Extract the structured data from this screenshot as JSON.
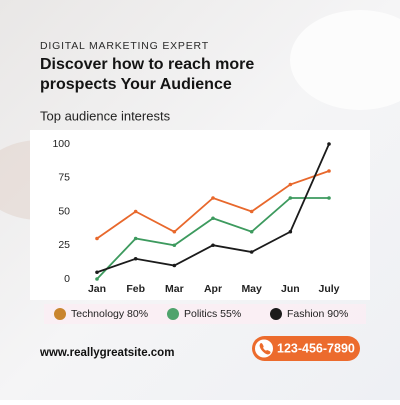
{
  "header": {
    "kicker": "DIGITAL MARKETING EXPERT",
    "title_lines": [
      "Discover how to reach more",
      "prospects Your Audience"
    ],
    "subtitle": "Top audience interests"
  },
  "chart_data": {
    "type": "line",
    "categories": [
      "Jan",
      "Feb",
      "Mar",
      "Apr",
      "May",
      "Jun",
      "July"
    ],
    "series": [
      {
        "name": "Technology 80%",
        "color": "#e8682c",
        "marker_color": "#c9852e",
        "values": [
          30,
          50,
          35,
          60,
          50,
          70,
          80
        ]
      },
      {
        "name": "Politics 55%",
        "color": "#3d9a5e",
        "marker_color": "#4fa36c",
        "values": [
          0,
          30,
          25,
          45,
          35,
          60,
          60
        ]
      },
      {
        "name": "Fashion 90%",
        "color": "#1b1b1b",
        "marker_color": "#1b1b1b",
        "values": [
          5,
          15,
          10,
          25,
          20,
          35,
          100
        ]
      }
    ],
    "ylim": [
      0,
      100
    ],
    "yticks": [
      0,
      25,
      50,
      75,
      100
    ],
    "grid": false
  },
  "footer": {
    "website": "www.reallygreatsite.com",
    "phone": "123-456-7890"
  }
}
